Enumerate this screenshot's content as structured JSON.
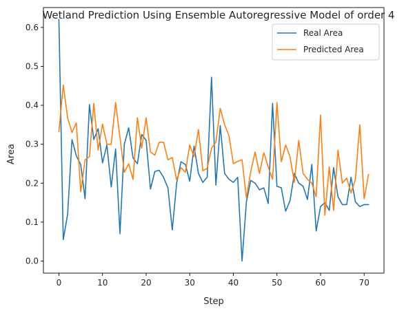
{
  "chart_data": {
    "type": "line",
    "title": "Wetland Prediction Using Ensemble Autoregressive Model of order 4",
    "xlabel": "Step",
    "ylabel": "Area",
    "xlim": [
      -3.55,
      74.55
    ],
    "ylim": [
      -0.031,
      0.651
    ],
    "xticks": [
      0,
      10,
      20,
      30,
      40,
      50,
      60,
      70
    ],
    "yticks": [
      0.0,
      0.1,
      0.2,
      0.3,
      0.4,
      0.5,
      0.6
    ],
    "ytick_labels": [
      "0.0",
      "0.1",
      "0.2",
      "0.3",
      "0.4",
      "0.5",
      "0.6"
    ],
    "grid": false,
    "legend": "top-right",
    "x": [
      0,
      1,
      2,
      3,
      4,
      5,
      6,
      7,
      8,
      9,
      10,
      11,
      12,
      13,
      14,
      15,
      16,
      17,
      18,
      19,
      20,
      21,
      22,
      23,
      24,
      25,
      26,
      27,
      28,
      29,
      30,
      31,
      32,
      33,
      34,
      35,
      36,
      37,
      38,
      39,
      40,
      41,
      42,
      43,
      44,
      45,
      46,
      47,
      48,
      49,
      50,
      51,
      52,
      53,
      54,
      55,
      56,
      57,
      58,
      59,
      60,
      61,
      62,
      63,
      64,
      65,
      66,
      67,
      68,
      69,
      70,
      71
    ],
    "series": [
      {
        "name": "Real Area",
        "color": "#1f77b4",
        "values": [
          0.62,
          0.055,
          0.12,
          0.312,
          0.27,
          0.248,
          0.16,
          0.402,
          0.312,
          0.34,
          0.252,
          0.298,
          0.19,
          0.288,
          0.07,
          0.3,
          0.342,
          0.265,
          0.25,
          0.325,
          0.31,
          0.185,
          0.23,
          0.233,
          0.215,
          0.188,
          0.08,
          0.2,
          0.255,
          0.248,
          0.205,
          0.295,
          0.225,
          0.202,
          0.215,
          0.472,
          0.195,
          0.348,
          0.225,
          0.21,
          0.202,
          0.215,
          0.0,
          0.152,
          0.207,
          0.2,
          0.183,
          0.188,
          0.148,
          0.405,
          0.192,
          0.188,
          0.128,
          0.155,
          0.225,
          0.2,
          0.192,
          0.158,
          0.248,
          0.077,
          0.14,
          0.15,
          0.13,
          0.24,
          0.165,
          0.145,
          0.145,
          0.215,
          0.152,
          0.14,
          0.145,
          0.145
        ]
      },
      {
        "name": "Predicted Area",
        "color": "#ff7f0e",
        "values": [
          0.332,
          0.452,
          0.368,
          0.33,
          0.355,
          0.178,
          0.26,
          0.268,
          0.405,
          0.285,
          0.352,
          0.3,
          0.3,
          0.407,
          0.318,
          0.228,
          0.25,
          0.21,
          0.368,
          0.29,
          0.368,
          0.28,
          0.272,
          0.305,
          0.305,
          0.26,
          0.266,
          0.208,
          0.24,
          0.228,
          0.298,
          0.268,
          0.338,
          0.232,
          0.238,
          0.29,
          0.305,
          0.392,
          0.35,
          0.322,
          0.25,
          0.256,
          0.26,
          0.162,
          0.23,
          0.28,
          0.225,
          0.278,
          0.242,
          0.21,
          0.407,
          0.255,
          0.298,
          0.268,
          0.202,
          0.31,
          0.225,
          0.21,
          0.2,
          0.165,
          0.375,
          0.118,
          0.242,
          0.13,
          0.285,
          0.2,
          0.213,
          0.175,
          0.21,
          0.35,
          0.16,
          0.222
        ]
      }
    ]
  }
}
